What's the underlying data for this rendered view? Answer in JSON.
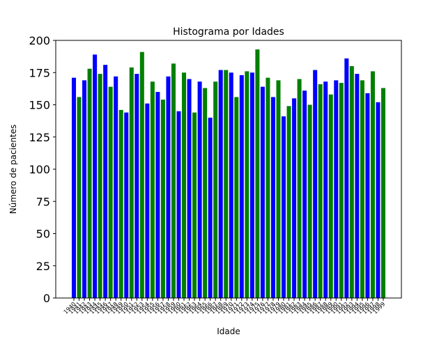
{
  "chart_data": {
    "type": "bar",
    "title": "Histograma por Idades",
    "xlabel": "Idade",
    "ylabel": "Número de pacientes",
    "ylim": [
      0,
      200
    ],
    "yticks": [
      0,
      25,
      50,
      75,
      100,
      125,
      150,
      175,
      200
    ],
    "grid": false,
    "legend": "none",
    "colors": [
      "#0000ff",
      "#008000"
    ],
    "categories": [
      "1940",
      "1941",
      "1942",
      "1943",
      "1944",
      "1945",
      "1946",
      "1947",
      "1948",
      "1949",
      "1950",
      "1951",
      "1952",
      "1953",
      "1954",
      "1955",
      "1956",
      "1957",
      "1958",
      "1959",
      "1960",
      "1961",
      "1962",
      "1963",
      "1964",
      "1965",
      "1966",
      "1967",
      "1968",
      "1969",
      "1970",
      "1971",
      "1972",
      "1973",
      "1974",
      "1975",
      "1976",
      "1977",
      "1978",
      "1979",
      "1980",
      "1981",
      "1982",
      "1983",
      "1984",
      "1985",
      "1986",
      "1987",
      "1988",
      "1989",
      "1990",
      "1991",
      "1992",
      "1993",
      "1994",
      "1995",
      "1996",
      "1997",
      "1998",
      "1999"
    ],
    "values": [
      171,
      156,
      169,
      178,
      189,
      174,
      181,
      164,
      172,
      146,
      144,
      179,
      174,
      191,
      151,
      168,
      160,
      154,
      172,
      182,
      145,
      175,
      170,
      144,
      168,
      163,
      140,
      168,
      177,
      177,
      175,
      156,
      173,
      176,
      175,
      193,
      164,
      171,
      156,
      169,
      141,
      149,
      155,
      170,
      161,
      150,
      177,
      166,
      168,
      158,
      169,
      167,
      186,
      180,
      174,
      169,
      159,
      176,
      152,
      163
    ]
  }
}
